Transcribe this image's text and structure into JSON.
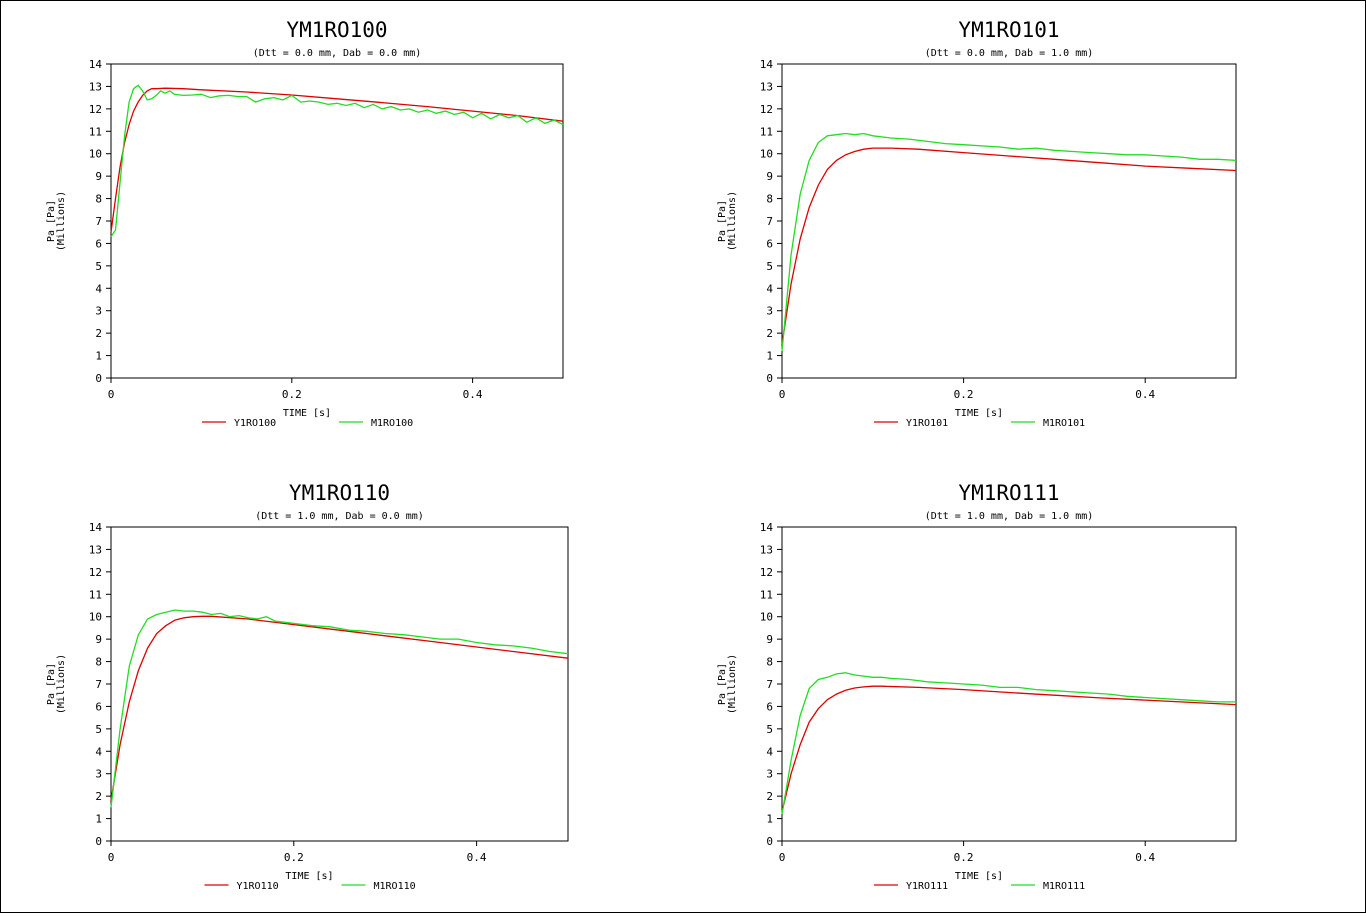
{
  "page": {
    "background": "#ffffff"
  },
  "chart_data": [
    {
      "type": "line",
      "title": "YM1RO100",
      "subtitle": "(Dtt = 0.0 mm,  Dab = 0.0 mm)",
      "xlabel": "TIME  [s]",
      "ylabel": "Pa  [Pa]",
      "ylabel_unit": "(Millions)",
      "xlim": [
        0,
        0.5
      ],
      "ylim": [
        0,
        14
      ],
      "x_ticks": [
        "0",
        "0.2",
        "0.4"
      ],
      "y_ticks": [
        "0",
        "1",
        "2",
        "3",
        "4",
        "5",
        "6",
        "7",
        "8",
        "9",
        "10",
        "11",
        "12",
        "13",
        "14"
      ],
      "grid": false,
      "legend": "bottom",
      "series": [
        {
          "name": "Y1RO100",
          "color": "#e00000",
          "x": [
            0,
            0.005,
            0.01,
            0.015,
            0.02,
            0.025,
            0.03,
            0.035,
            0.04,
            0.045,
            0.05,
            0.06,
            0.08,
            0.1,
            0.15,
            0.2,
            0.25,
            0.3,
            0.35,
            0.4,
            0.45,
            0.5
          ],
          "y": [
            6.5,
            8.0,
            9.4,
            10.5,
            11.3,
            11.9,
            12.3,
            12.6,
            12.8,
            12.9,
            12.9,
            12.92,
            12.9,
            12.85,
            12.75,
            12.62,
            12.45,
            12.28,
            12.1,
            11.9,
            11.7,
            11.45
          ]
        },
        {
          "name": "M1RO100",
          "color": "#22dd22",
          "x": [
            0,
            0.005,
            0.01,
            0.015,
            0.02,
            0.025,
            0.03,
            0.035,
            0.04,
            0.045,
            0.05,
            0.055,
            0.06,
            0.065,
            0.07,
            0.08,
            0.09,
            0.1,
            0.11,
            0.12,
            0.13,
            0.14,
            0.15,
            0.16,
            0.17,
            0.18,
            0.19,
            0.2,
            0.21,
            0.22,
            0.23,
            0.24,
            0.25,
            0.26,
            0.27,
            0.28,
            0.29,
            0.3,
            0.31,
            0.32,
            0.33,
            0.34,
            0.35,
            0.36,
            0.37,
            0.38,
            0.39,
            0.4,
            0.41,
            0.42,
            0.43,
            0.44,
            0.45,
            0.46,
            0.47,
            0.48,
            0.49,
            0.5
          ],
          "y": [
            6.3,
            6.6,
            8.7,
            10.8,
            12.3,
            12.9,
            13.05,
            12.8,
            12.4,
            12.45,
            12.6,
            12.8,
            12.7,
            12.8,
            12.65,
            12.6,
            12.62,
            12.65,
            12.5,
            12.58,
            12.6,
            12.55,
            12.55,
            12.3,
            12.45,
            12.5,
            12.4,
            12.6,
            12.3,
            12.35,
            12.3,
            12.2,
            12.25,
            12.15,
            12.25,
            12.05,
            12.2,
            12.0,
            12.1,
            11.95,
            12.0,
            11.85,
            11.95,
            11.8,
            11.9,
            11.75,
            11.85,
            11.6,
            11.8,
            11.55,
            11.75,
            11.6,
            11.7,
            11.4,
            11.6,
            11.35,
            11.5,
            11.3
          ]
        }
      ]
    },
    {
      "type": "line",
      "title": "YM1RO101",
      "subtitle": "(Dtt = 0.0 mm,  Dab = 1.0 mm)",
      "xlabel": "TIME  [s]",
      "ylabel": "Pa  [Pa]",
      "ylabel_unit": "(Millions)",
      "xlim": [
        0,
        0.5
      ],
      "ylim": [
        0,
        14
      ],
      "x_ticks": [
        "0",
        "0.2",
        "0.4"
      ],
      "y_ticks": [
        "0",
        "1",
        "2",
        "3",
        "4",
        "5",
        "6",
        "7",
        "8",
        "9",
        "10",
        "11",
        "12",
        "13",
        "14"
      ],
      "grid": false,
      "legend": "bottom",
      "series": [
        {
          "name": "Y1RO101",
          "color": "#e00000",
          "x": [
            0,
            0.01,
            0.02,
            0.03,
            0.04,
            0.05,
            0.06,
            0.07,
            0.08,
            0.09,
            0.1,
            0.12,
            0.15,
            0.2,
            0.25,
            0.3,
            0.35,
            0.4,
            0.45,
            0.5
          ],
          "y": [
            1.5,
            4.2,
            6.2,
            7.6,
            8.6,
            9.3,
            9.7,
            9.95,
            10.1,
            10.2,
            10.25,
            10.25,
            10.2,
            10.05,
            9.9,
            9.75,
            9.6,
            9.45,
            9.35,
            9.25
          ]
        },
        {
          "name": "M1RO101",
          "color": "#22dd22",
          "x": [
            0,
            0.01,
            0.02,
            0.03,
            0.04,
            0.05,
            0.06,
            0.07,
            0.08,
            0.09,
            0.1,
            0.12,
            0.14,
            0.16,
            0.18,
            0.2,
            0.22,
            0.24,
            0.26,
            0.28,
            0.3,
            0.32,
            0.34,
            0.36,
            0.38,
            0.4,
            0.42,
            0.44,
            0.46,
            0.48,
            0.5
          ],
          "y": [
            1.2,
            5.5,
            8.2,
            9.7,
            10.5,
            10.8,
            10.85,
            10.9,
            10.85,
            10.9,
            10.8,
            10.7,
            10.65,
            10.55,
            10.45,
            10.4,
            10.35,
            10.3,
            10.2,
            10.25,
            10.15,
            10.1,
            10.05,
            10.0,
            9.95,
            9.95,
            9.9,
            9.85,
            9.75,
            9.75,
            9.7
          ]
        }
      ]
    },
    {
      "type": "line",
      "title": "YM1RO110",
      "subtitle": "(Dtt = 1.0 mm,  Dab = 0.0 mm)",
      "xlabel": "TIME  [s]",
      "ylabel": "Pa  [Pa]",
      "ylabel_unit": "(Millions)",
      "xlim": [
        0,
        0.5
      ],
      "ylim": [
        0,
        14
      ],
      "x_ticks": [
        "0",
        "0.2",
        "0.4"
      ],
      "y_ticks": [
        "0",
        "1",
        "2",
        "3",
        "4",
        "5",
        "6",
        "7",
        "8",
        "9",
        "10",
        "11",
        "12",
        "13",
        "14"
      ],
      "grid": false,
      "legend": "bottom",
      "series": [
        {
          "name": "Y1RO110",
          "color": "#e00000",
          "x": [
            0,
            0.01,
            0.02,
            0.03,
            0.04,
            0.05,
            0.06,
            0.07,
            0.08,
            0.09,
            0.1,
            0.11,
            0.15,
            0.2,
            0.25,
            0.3,
            0.35,
            0.4,
            0.45,
            0.5
          ],
          "y": [
            1.8,
            4.3,
            6.2,
            7.6,
            8.6,
            9.25,
            9.6,
            9.85,
            9.95,
            10.0,
            10.02,
            10.02,
            9.9,
            9.65,
            9.4,
            9.15,
            8.9,
            8.65,
            8.4,
            8.15
          ]
        },
        {
          "name": "M1RO110",
          "color": "#22dd22",
          "x": [
            0,
            0.01,
            0.02,
            0.03,
            0.04,
            0.05,
            0.06,
            0.07,
            0.08,
            0.09,
            0.1,
            0.11,
            0.12,
            0.13,
            0.14,
            0.15,
            0.16,
            0.17,
            0.18,
            0.19,
            0.2,
            0.22,
            0.24,
            0.26,
            0.28,
            0.3,
            0.32,
            0.34,
            0.36,
            0.38,
            0.4,
            0.42,
            0.44,
            0.46,
            0.48,
            0.5
          ],
          "y": [
            1.5,
            5.0,
            7.8,
            9.2,
            9.9,
            10.1,
            10.2,
            10.3,
            10.25,
            10.25,
            10.2,
            10.1,
            10.15,
            10.0,
            10.05,
            9.95,
            9.9,
            10.0,
            9.8,
            9.75,
            9.7,
            9.6,
            9.55,
            9.4,
            9.35,
            9.25,
            9.2,
            9.1,
            9.0,
            9.0,
            8.85,
            8.75,
            8.7,
            8.6,
            8.45,
            8.35
          ]
        }
      ]
    },
    {
      "type": "line",
      "title": "YM1RO111",
      "subtitle": "(Dtt = 1.0 mm,  Dab = 1.0 mm)",
      "xlabel": "TIME  [s]",
      "ylabel": "Pa  [Pa]",
      "ylabel_unit": "(Millions)",
      "xlim": [
        0,
        0.5
      ],
      "ylim": [
        0,
        14
      ],
      "x_ticks": [
        "0",
        "0.2",
        "0.4"
      ],
      "y_ticks": [
        "0",
        "1",
        "2",
        "3",
        "4",
        "5",
        "6",
        "7",
        "8",
        "9",
        "10",
        "11",
        "12",
        "13",
        "14"
      ],
      "grid": false,
      "legend": "bottom",
      "series": [
        {
          "name": "Y1RO111",
          "color": "#e00000",
          "x": [
            0,
            0.01,
            0.02,
            0.03,
            0.04,
            0.05,
            0.06,
            0.07,
            0.08,
            0.09,
            0.1,
            0.11,
            0.15,
            0.2,
            0.25,
            0.3,
            0.35,
            0.4,
            0.45,
            0.5
          ],
          "y": [
            1.3,
            3.0,
            4.3,
            5.3,
            5.9,
            6.3,
            6.55,
            6.72,
            6.82,
            6.87,
            6.9,
            6.9,
            6.85,
            6.75,
            6.62,
            6.5,
            6.38,
            6.28,
            6.18,
            6.08
          ]
        },
        {
          "name": "M1RO111",
          "color": "#22dd22",
          "x": [
            0,
            0.01,
            0.02,
            0.03,
            0.04,
            0.05,
            0.06,
            0.07,
            0.08,
            0.09,
            0.1,
            0.11,
            0.12,
            0.14,
            0.16,
            0.18,
            0.2,
            0.22,
            0.24,
            0.26,
            0.28,
            0.3,
            0.32,
            0.34,
            0.36,
            0.38,
            0.4,
            0.42,
            0.44,
            0.46,
            0.48,
            0.5
          ],
          "y": [
            1.2,
            3.6,
            5.6,
            6.8,
            7.2,
            7.3,
            7.45,
            7.5,
            7.4,
            7.35,
            7.3,
            7.3,
            7.25,
            7.2,
            7.1,
            7.05,
            7.0,
            6.95,
            6.85,
            6.85,
            6.75,
            6.7,
            6.65,
            6.6,
            6.55,
            6.45,
            6.4,
            6.35,
            6.3,
            6.25,
            6.2,
            6.2
          ]
        }
      ]
    }
  ]
}
